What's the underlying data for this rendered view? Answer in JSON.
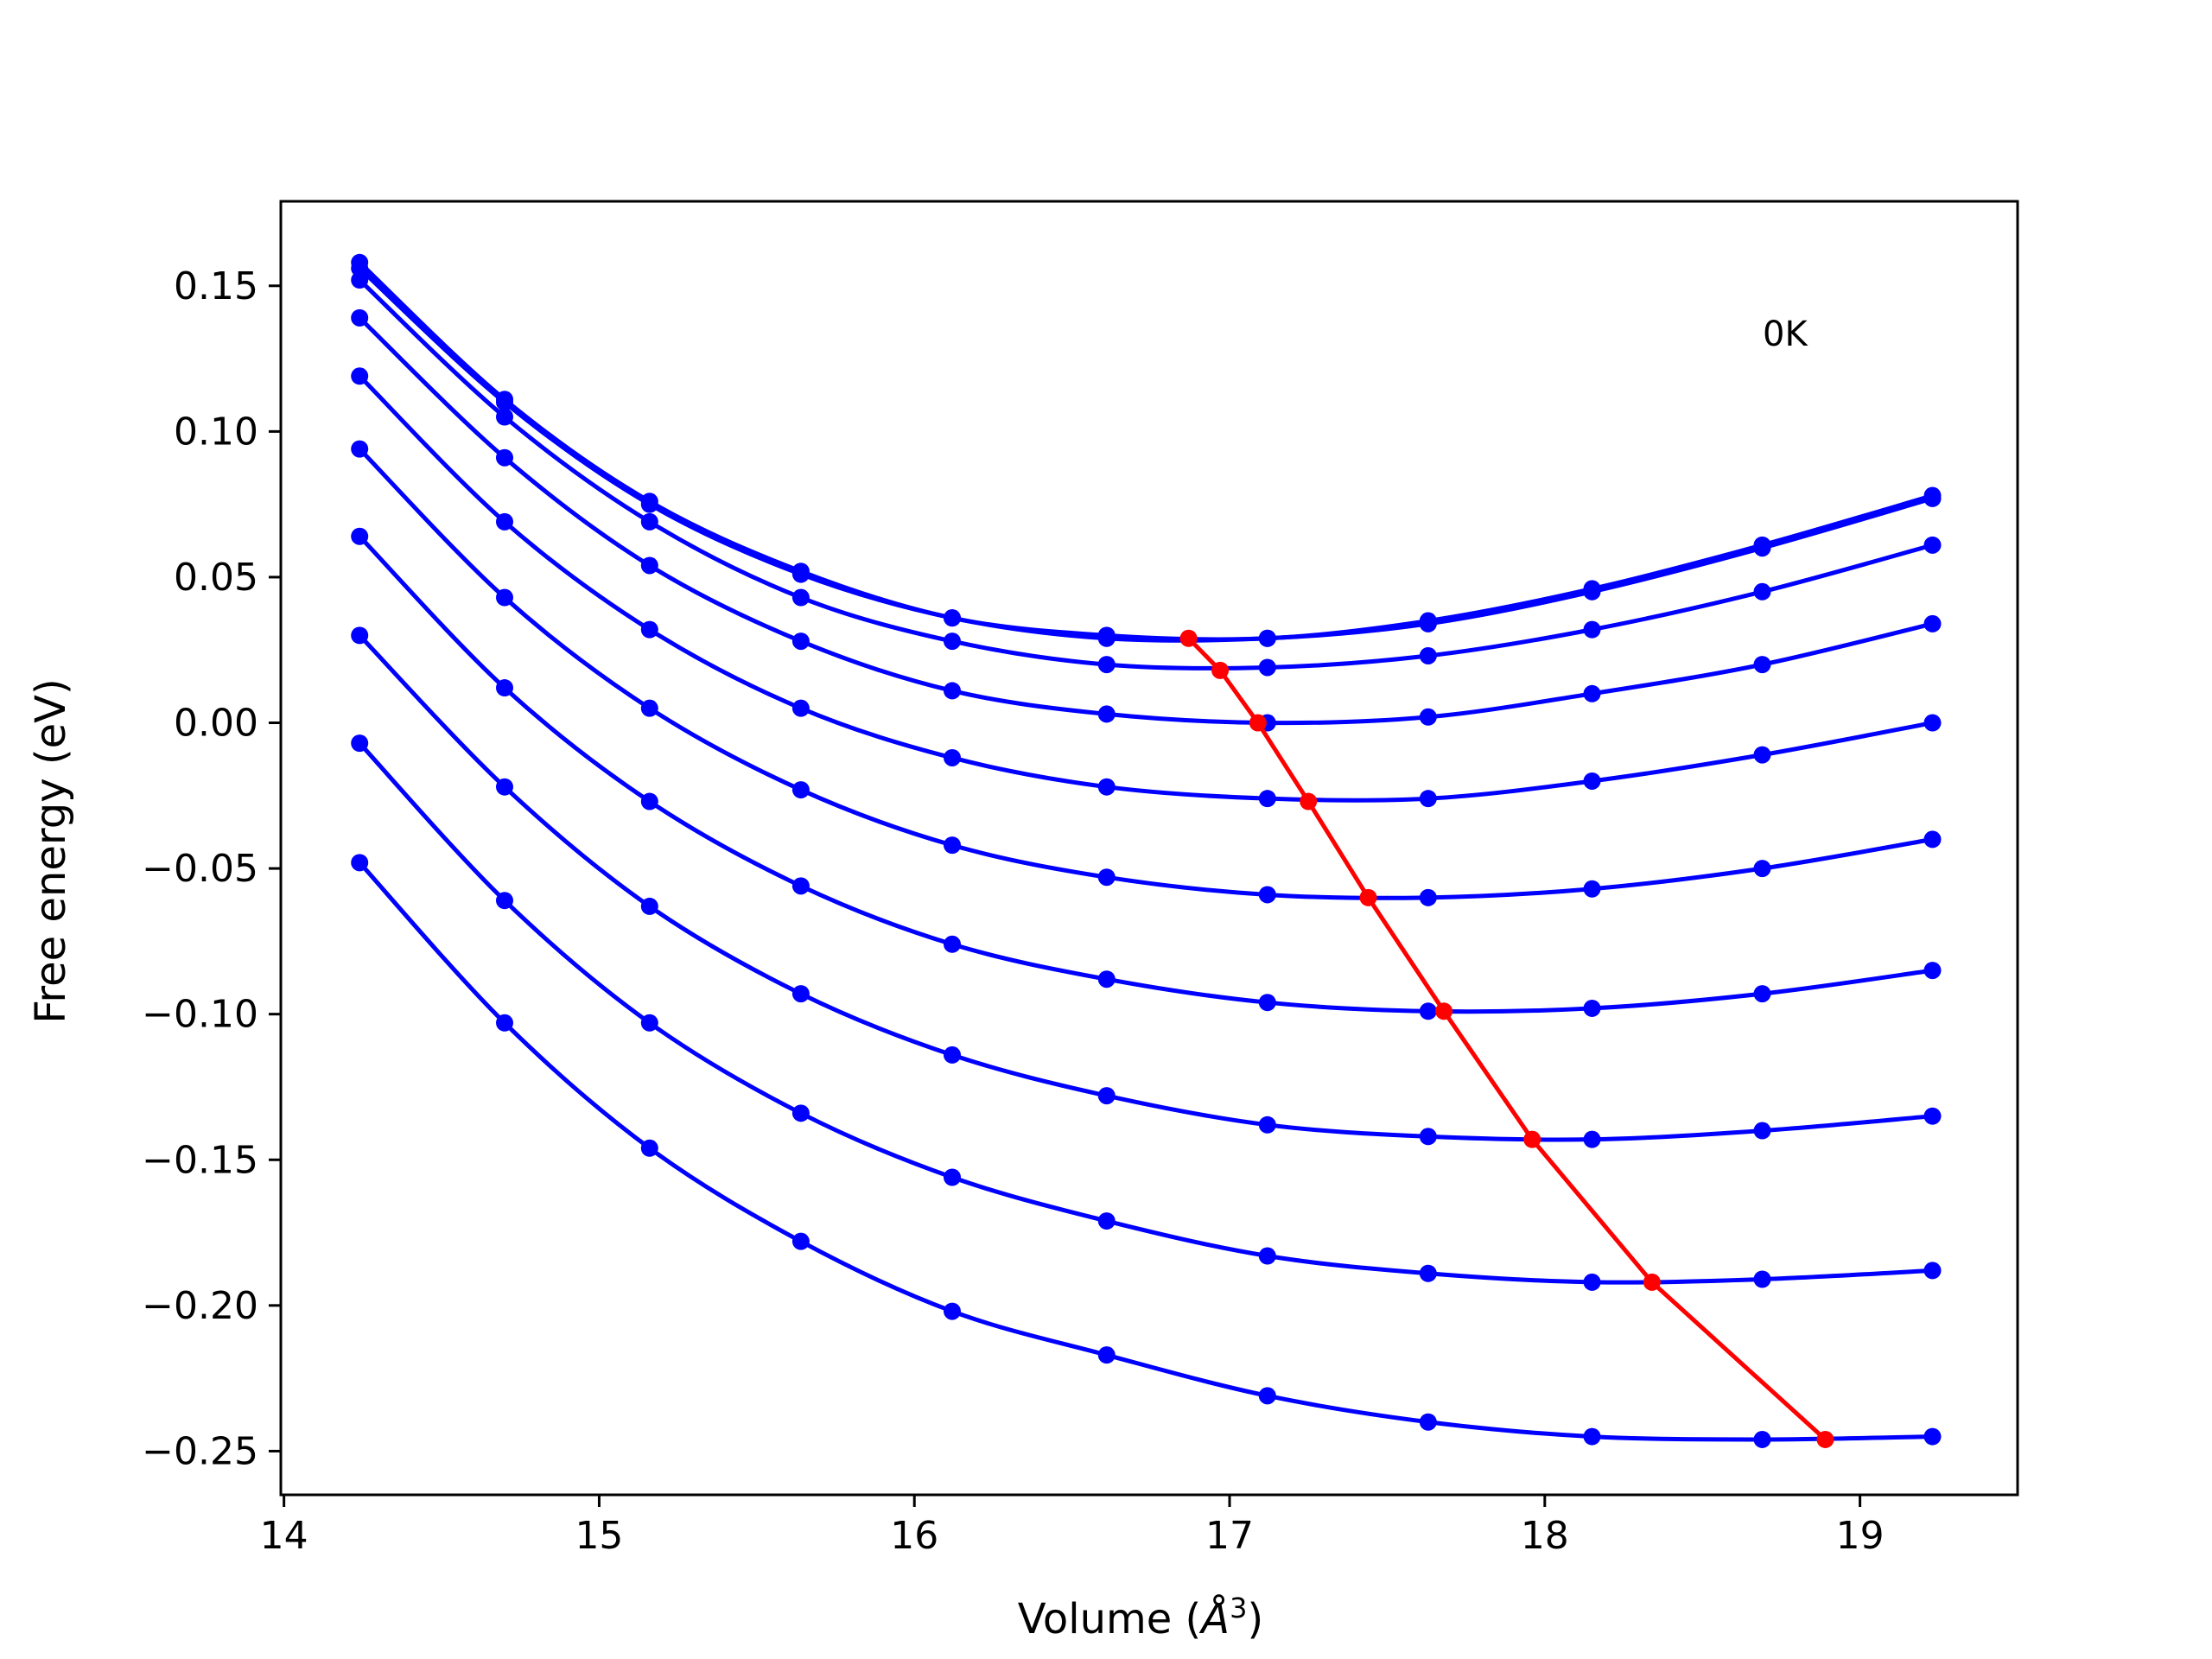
{
  "chart_data": {
    "type": "line",
    "title": "",
    "xlabel": "Volume (",
    "xlabel_symbol": "Å",
    "xlabel_exponent": "3",
    "xlabel_close": ")",
    "ylabel": "Free energy (eV)",
    "annotation": "0K",
    "xlim": [
      13.99,
      19.5
    ],
    "ylim": [
      -0.265,
      0.179
    ],
    "x_ticks": [
      14,
      15,
      16,
      17,
      18,
      19
    ],
    "x_tick_labels": [
      "14",
      "15",
      "16",
      "17",
      "18",
      "19"
    ],
    "y_ticks": [
      0.15,
      0.1,
      0.05,
      0.0,
      -0.05,
      -0.1,
      -0.15,
      -0.2,
      -0.25
    ],
    "y_tick_labels": [
      "0.15",
      "0.10",
      "0.05",
      "0.00",
      "−0.05",
      "−0.10",
      "−0.15",
      "−0.20",
      "−0.25"
    ],
    "grid": false,
    "colors": {
      "series": "#0000ff",
      "minima": "#ff0000"
    },
    "x": [
      14.24,
      14.7,
      15.16,
      15.64,
      16.12,
      16.61,
      17.12,
      17.63,
      18.15,
      18.69,
      19.23
    ],
    "series": [
      {
        "name": "curve-1",
        "values": [
          0.158,
          0.111,
          0.076,
          0.052,
          0.036,
          0.03,
          0.029,
          0.035,
          0.046,
          0.061,
          0.078
        ]
      },
      {
        "name": "curve-2",
        "values": [
          0.156,
          0.11,
          0.075,
          0.051,
          0.036,
          0.029,
          0.029,
          0.034,
          0.045,
          0.06,
          0.077
        ]
      },
      {
        "name": "curve-3",
        "values": [
          0.152,
          0.105,
          0.069,
          0.043,
          0.028,
          0.02,
          0.019,
          0.023,
          0.032,
          0.045,
          0.061
        ]
      },
      {
        "name": "curve-4",
        "values": [
          0.139,
          0.091,
          0.054,
          0.028,
          0.011,
          0.003,
          0.0,
          0.002,
          0.01,
          0.02,
          0.034
        ]
      },
      {
        "name": "curve-5",
        "values": [
          0.119,
          0.069,
          0.032,
          0.005,
          -0.012,
          -0.022,
          -0.026,
          -0.026,
          -0.02,
          -0.011,
          0.0
        ]
      },
      {
        "name": "curve-6",
        "values": [
          0.094,
          0.043,
          0.005,
          -0.023,
          -0.042,
          -0.053,
          -0.059,
          -0.06,
          -0.057,
          -0.05,
          -0.04
        ]
      },
      {
        "name": "curve-7",
        "values": [
          0.064,
          0.012,
          -0.027,
          -0.056,
          -0.076,
          -0.088,
          -0.096,
          -0.099,
          -0.098,
          -0.093,
          -0.085
        ]
      },
      {
        "name": "curve-8",
        "values": [
          0.03,
          -0.022,
          -0.063,
          -0.093,
          -0.114,
          -0.128,
          -0.138,
          -0.142,
          -0.143,
          -0.14,
          -0.135
        ]
      },
      {
        "name": "curve-9",
        "values": [
          -0.007,
          -0.061,
          -0.103,
          -0.134,
          -0.156,
          -0.171,
          -0.183,
          -0.189,
          -0.192,
          -0.191,
          -0.188
        ]
      },
      {
        "name": "curve-10",
        "values": [
          -0.048,
          -0.103,
          -0.146,
          -0.178,
          -0.202,
          -0.217,
          -0.231,
          -0.24,
          -0.245,
          -0.246,
          -0.245
        ]
      }
    ],
    "minima": {
      "name": "equilibrium-volume",
      "x": [
        16.87,
        16.97,
        17.09,
        17.25,
        17.44,
        17.68,
        17.96,
        18.34,
        18.89
      ],
      "y": [
        0.029,
        0.018,
        0.0,
        -0.027,
        -0.06,
        -0.099,
        -0.143,
        -0.192,
        -0.246
      ]
    }
  }
}
